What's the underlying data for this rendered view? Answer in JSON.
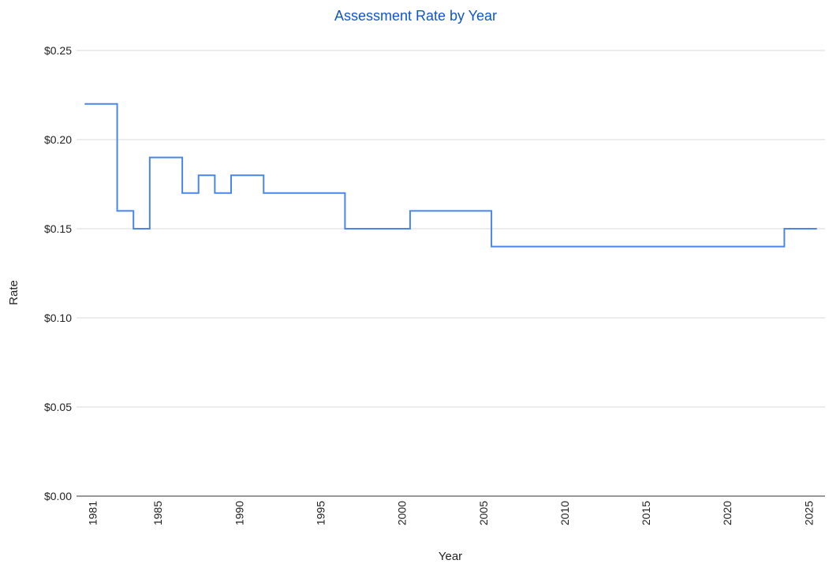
{
  "chart_data": {
    "type": "line",
    "step": true,
    "title": "Assessment Rate by Year",
    "xlabel": "Year",
    "ylabel": "Rate",
    "xlim": [
      1980,
      2026
    ],
    "ylim": [
      0,
      0.25
    ],
    "x_ticks": [
      1981,
      1985,
      1990,
      1995,
      2000,
      2005,
      2010,
      2015,
      2020,
      2025
    ],
    "y_ticks": [
      {
        "value": 0.0,
        "label": "$0.00"
      },
      {
        "value": 0.05,
        "label": "$0.05"
      },
      {
        "value": 0.1,
        "label": "$0.10"
      },
      {
        "value": 0.15,
        "label": "$0.15"
      },
      {
        "value": 0.2,
        "label": "$0.20"
      },
      {
        "value": 0.25,
        "label": "$0.25"
      }
    ],
    "grid": true,
    "colors": {
      "series": "#4a86e8",
      "title": "#1155cc",
      "grid": "#d9d9d9"
    },
    "series": [
      {
        "x": [
          1981,
          1982,
          1983,
          1984,
          1985,
          1986,
          1987,
          1988,
          1989,
          1990,
          1991,
          1992,
          1993,
          1994,
          1995,
          1996,
          1997,
          1998,
          1999,
          2000,
          2001,
          2002,
          2003,
          2004,
          2005,
          2006,
          2007,
          2008,
          2009,
          2010,
          2011,
          2012,
          2013,
          2014,
          2015,
          2016,
          2017,
          2018,
          2019,
          2020,
          2021,
          2022,
          2023,
          2024,
          2025
        ],
        "y": [
          0.22,
          0.22,
          0.16,
          0.15,
          0.19,
          0.19,
          0.17,
          0.18,
          0.17,
          0.18,
          0.18,
          0.17,
          0.17,
          0.17,
          0.17,
          0.17,
          0.15,
          0.15,
          0.15,
          0.15,
          0.16,
          0.16,
          0.16,
          0.16,
          0.16,
          0.14,
          0.14,
          0.14,
          0.14,
          0.14,
          0.14,
          0.14,
          0.14,
          0.14,
          0.14,
          0.14,
          0.14,
          0.14,
          0.14,
          0.14,
          0.14,
          0.14,
          0.14,
          0.15,
          0.15
        ]
      }
    ]
  }
}
